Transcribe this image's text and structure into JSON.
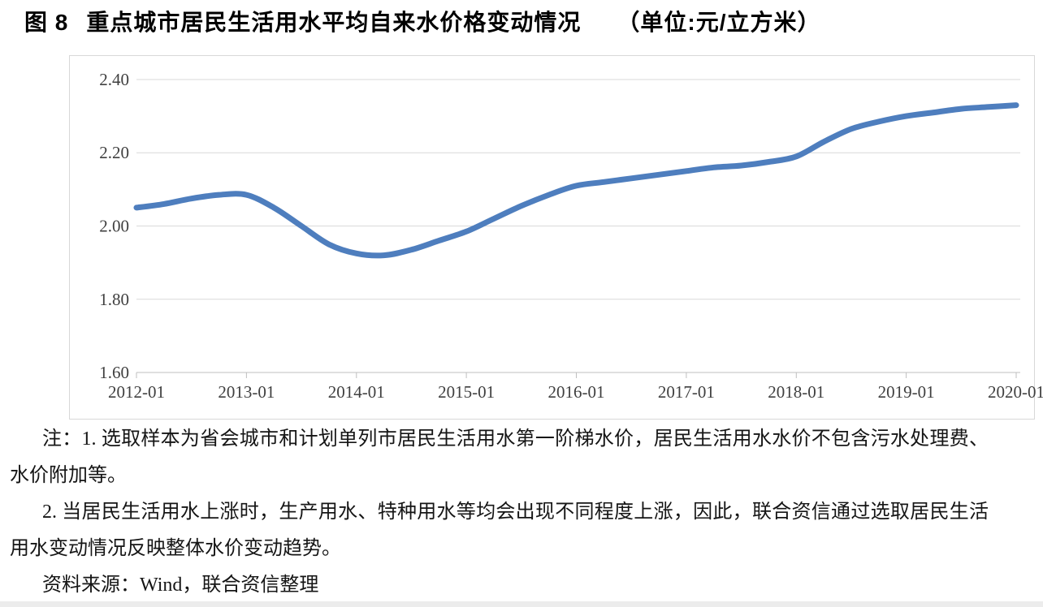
{
  "title": {
    "figure_label": "图 8",
    "text": "重点城市居民生活用水平均自来水价格变动情况",
    "unit": "（单位:元/立方米）"
  },
  "notes": {
    "note1": "注：1. 选取样本为省会城市和计划单列市居民生活用水第一阶梯水价，居民生活用水水价不包含污水处理费、水价附加等。",
    "note2": "2. 当居民生活用水上涨时，生产用水、特种用水等均会出现不同程度上涨，因此，联合资信通过选取居民生活用水变动情况反映整体水价变动趋势。",
    "source": "资料来源：Wind，联合资信整理"
  },
  "chart_data": {
    "type": "line",
    "title": "重点城市居民生活用水平均自来水价格变动情况",
    "unit": "元/立方米",
    "legend": "none",
    "grid": true,
    "ylim": [
      1.6,
      2.4
    ],
    "y_ticks": [
      1.6,
      1.8,
      2.0,
      2.2,
      2.4
    ],
    "x_tick_labels": [
      "2012-01",
      "2013-01",
      "2014-01",
      "2015-01",
      "2016-01",
      "2017-01",
      "2018-01",
      "2019-01",
      "2020-01"
    ],
    "x": [
      "2012-01",
      "2012-04",
      "2012-07",
      "2012-10",
      "2013-01",
      "2013-04",
      "2013-07",
      "2013-10",
      "2014-01",
      "2014-04",
      "2014-07",
      "2014-10",
      "2015-01",
      "2015-04",
      "2015-07",
      "2015-10",
      "2016-01",
      "2016-04",
      "2016-07",
      "2016-10",
      "2017-01",
      "2017-04",
      "2017-07",
      "2017-10",
      "2018-01",
      "2018-04",
      "2018-07",
      "2018-10",
      "2019-01",
      "2019-04",
      "2019-07",
      "2019-10",
      "2020-01"
    ],
    "values": [
      2.05,
      2.06,
      2.075,
      2.085,
      2.085,
      2.05,
      2.0,
      1.95,
      1.925,
      1.92,
      1.935,
      1.96,
      1.985,
      2.02,
      2.055,
      2.085,
      2.11,
      2.12,
      2.13,
      2.14,
      2.15,
      2.16,
      2.165,
      2.175,
      2.19,
      2.23,
      2.265,
      2.285,
      2.3,
      2.31,
      2.32,
      2.325,
      2.33
    ],
    "line_color": "#4e7ebe",
    "gridline_color": "#d9d9d9",
    "axis_color": "#bfbfbf",
    "tick_label_color": "#3f3f3f"
  }
}
